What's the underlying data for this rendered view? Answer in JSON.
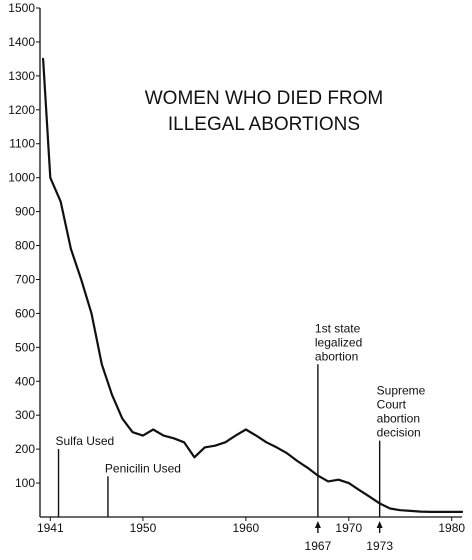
{
  "chart_data": {
    "type": "line",
    "title_lines": [
      "WOMEN WHO DIED FROM",
      "ILLEGAL ABORTIONS"
    ],
    "xlabel": "",
    "ylabel": "",
    "xlim": [
      1940,
      1981
    ],
    "ylim": [
      0,
      1500
    ],
    "grid": false,
    "y_ticks": [
      100,
      200,
      300,
      400,
      500,
      600,
      700,
      800,
      900,
      1000,
      1100,
      1200,
      1300,
      1400,
      1500
    ],
    "x_ticks": [
      {
        "value": 1941,
        "label": "1941"
      },
      {
        "value": 1950,
        "label": "1950"
      },
      {
        "value": 1960,
        "label": "1960"
      },
      {
        "value": 1970,
        "label": "1970"
      },
      {
        "value": 1980,
        "label": "1980"
      }
    ],
    "series": [
      {
        "x": [
          1940.3,
          1941,
          1942,
          1943,
          1944,
          1945,
          1946,
          1947,
          1948,
          1949,
          1950,
          1951,
          1952,
          1953,
          1954,
          1955,
          1956,
          1957,
          1958,
          1959,
          1960,
          1961,
          1962,
          1963,
          1964,
          1965,
          1966,
          1967,
          1968,
          1969,
          1970,
          1971,
          1972,
          1973,
          1974,
          1975,
          1976,
          1977,
          1978,
          1979,
          1980,
          1981
        ],
        "values": [
          1350,
          1000,
          930,
          790,
          700,
          600,
          450,
          360,
          290,
          250,
          240,
          258,
          240,
          232,
          220,
          176,
          205,
          210,
          220,
          240,
          258,
          240,
          220,
          205,
          188,
          165,
          145,
          122,
          105,
          110,
          100,
          80,
          60,
          40,
          25,
          20,
          18,
          16,
          15,
          15,
          15,
          15
        ]
      }
    ],
    "annotations": [
      {
        "x": 1941.8,
        "y": 200,
        "lines": [
          "Sulfa Used"
        ],
        "marker": ""
      },
      {
        "x": 1946.6,
        "y": 120,
        "lines": [
          "Penicilin Used"
        ],
        "marker": ""
      },
      {
        "x": 1967,
        "y": 450,
        "lines": [
          "1st state",
          "legalized",
          "abortion"
        ],
        "marker": "1967"
      },
      {
        "x": 1973,
        "y": 225,
        "lines": [
          "Supreme",
          "Court",
          "abortion",
          "decision"
        ],
        "marker": "1973"
      }
    ]
  }
}
